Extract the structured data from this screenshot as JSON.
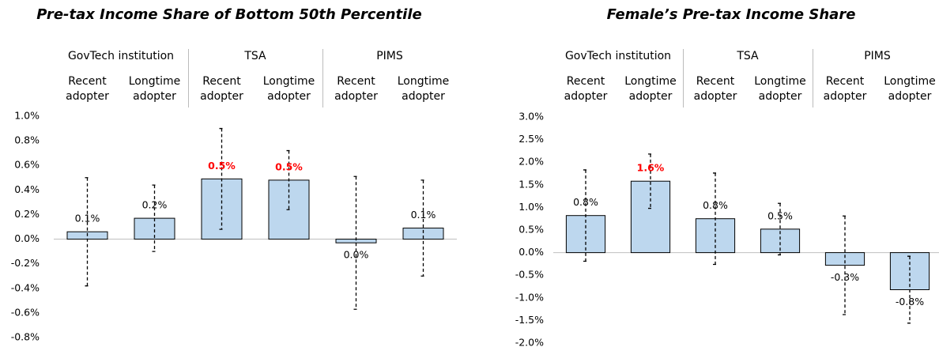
{
  "chart_data": [
    {
      "type": "bar",
      "title": "Pre-tax Income Share of Bottom 50th Percentile",
      "groups": [
        "GovTech institution",
        "TSA",
        "PIMS"
      ],
      "categories": [
        "Recent adopter",
        "Longtime adopter",
        "Recent adopter",
        "Longtime adopter",
        "Recent adopter",
        "Longtime adopter"
      ],
      "values": [
        0.06,
        0.17,
        0.49,
        0.48,
        -0.03,
        0.09
      ],
      "value_labels": [
        "0.1%",
        "0.2%",
        "0.5%",
        "0.5%",
        "0.0%",
        "0.1%"
      ],
      "errors": [
        0.44,
        0.27,
        0.41,
        0.24,
        0.54,
        0.39
      ],
      "highlight": [
        false,
        false,
        true,
        true,
        false,
        false
      ],
      "highlight_color": "#ff0000",
      "color": "#bdd7ee",
      "ylim": [
        -0.8,
        1.0
      ],
      "yticks": [
        {
          "value": -0.8,
          "label": "-0.8%"
        },
        {
          "value": -0.6,
          "label": "-0.6%"
        },
        {
          "value": -0.4,
          "label": "-0.4%"
        },
        {
          "value": -0.2,
          "label": "-0.2%"
        },
        {
          "value": 0,
          "label": "0.0%"
        },
        {
          "value": 0.2,
          "label": "0.2%"
        },
        {
          "value": 0.4,
          "label": "0.4%"
        },
        {
          "value": 0.6,
          "label": "0.6%"
        },
        {
          "value": 0.8,
          "label": "0.8%"
        },
        {
          "value": 1.0,
          "label": "1.0%"
        }
      ]
    },
    {
      "type": "bar",
      "title": "Female’s Pre-tax Income Share",
      "groups": [
        "GovTech institution",
        "TSA",
        "PIMS"
      ],
      "categories": [
        "Recent adopter",
        "Longtime adopter",
        "Recent adopter",
        "Longtime adopter",
        "Recent adopter",
        "Longtime adopter"
      ],
      "values": [
        0.82,
        1.58,
        0.75,
        0.52,
        -0.28,
        -0.82
      ],
      "value_labels": [
        "0.8%",
        "1.6%",
        "0.8%",
        "0.5%",
        "-0.3%",
        "-0.8%"
      ],
      "errors": [
        1.01,
        0.6,
        1.01,
        0.57,
        1.09,
        0.74
      ],
      "highlight": [
        false,
        true,
        false,
        false,
        false,
        false
      ],
      "highlight_color": "#ff0000",
      "color": "#bdd7ee",
      "ylim": [
        -2.0,
        3.0
      ],
      "yticks": [
        {
          "value": -2.0,
          "label": "-2.0%"
        },
        {
          "value": -1.5,
          "label": "-1.5%"
        },
        {
          "value": -1.0,
          "label": "-1.0%"
        },
        {
          "value": -0.5,
          "label": "-0.5%"
        },
        {
          "value": 0,
          "label": "0.0%"
        },
        {
          "value": 0.5,
          "label": "0.5%"
        },
        {
          "value": 1.0,
          "label": "1.0%"
        },
        {
          "value": 1.5,
          "label": "1.5%"
        },
        {
          "value": 2.0,
          "label": "2.0%"
        },
        {
          "value": 2.5,
          "label": "2.5%"
        },
        {
          "value": 3.0,
          "label": "3.0%"
        }
      ]
    }
  ]
}
